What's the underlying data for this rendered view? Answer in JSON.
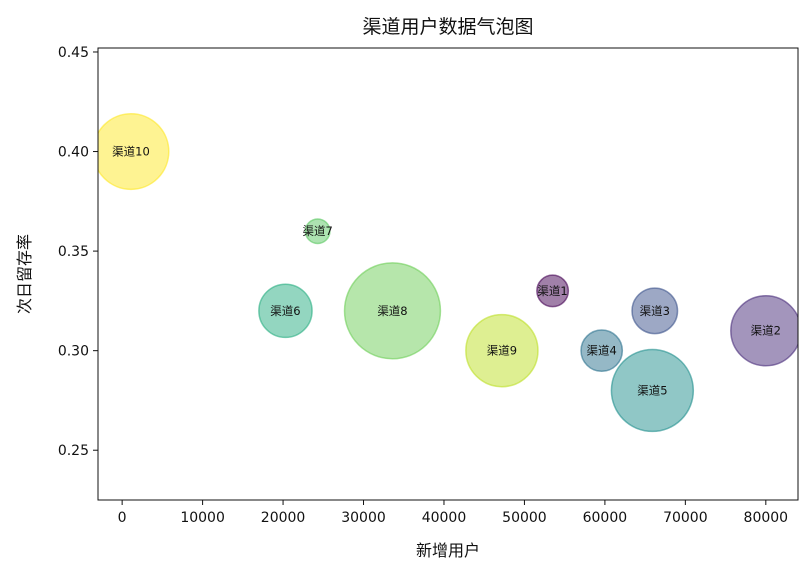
{
  "chart_data": {
    "type": "scatter",
    "title": "渠道用户数据气泡图",
    "xlabel": "新增用户",
    "ylabel": "次日留存率",
    "xlim": [
      -3000,
      84000
    ],
    "ylim": [
      0.225,
      0.452
    ],
    "xticks": [
      0,
      10000,
      20000,
      30000,
      40000,
      50000,
      60000,
      70000,
      80000
    ],
    "yticks": [
      0.25,
      0.3,
      0.35,
      0.4,
      0.45
    ],
    "ytick_labels": [
      "0.25",
      "0.30",
      "0.35",
      "0.40",
      "0.45"
    ],
    "grid": false,
    "alpha": 0.5,
    "points": [
      {
        "label": "渠道1",
        "x": 53500,
        "y": 0.33,
        "size_rel": 0.45,
        "color": "#440154"
      },
      {
        "label": "渠道2",
        "x": 80000,
        "y": 0.31,
        "size_rel": 1.0,
        "color": "#472c7a"
      },
      {
        "label": "渠道3",
        "x": 66200,
        "y": 0.32,
        "size_rel": 0.65,
        "color": "#3b518b"
      },
      {
        "label": "渠道4",
        "x": 59600,
        "y": 0.3,
        "size_rel": 0.59,
        "color": "#2c718e"
      },
      {
        "label": "渠道5",
        "x": 65900,
        "y": 0.28,
        "size_rel": 1.17,
        "color": "#21908d"
      },
      {
        "label": "渠道6",
        "x": 20300,
        "y": 0.32,
        "size_rel": 0.76,
        "color": "#27ad81"
      },
      {
        "label": "渠道7",
        "x": 24300,
        "y": 0.36,
        "size_rel": 0.35,
        "color": "#5cc863"
      },
      {
        "label": "渠道8",
        "x": 33600,
        "y": 0.32,
        "size_rel": 1.37,
        "color": "#6ece58"
      },
      {
        "label": "渠道9",
        "x": 47200,
        "y": 0.3,
        "size_rel": 1.03,
        "color": "#bddf26"
      },
      {
        "label": "渠道10",
        "x": 1100,
        "y": 0.4,
        "size_rel": 1.08,
        "color": "#fde725"
      }
    ]
  }
}
